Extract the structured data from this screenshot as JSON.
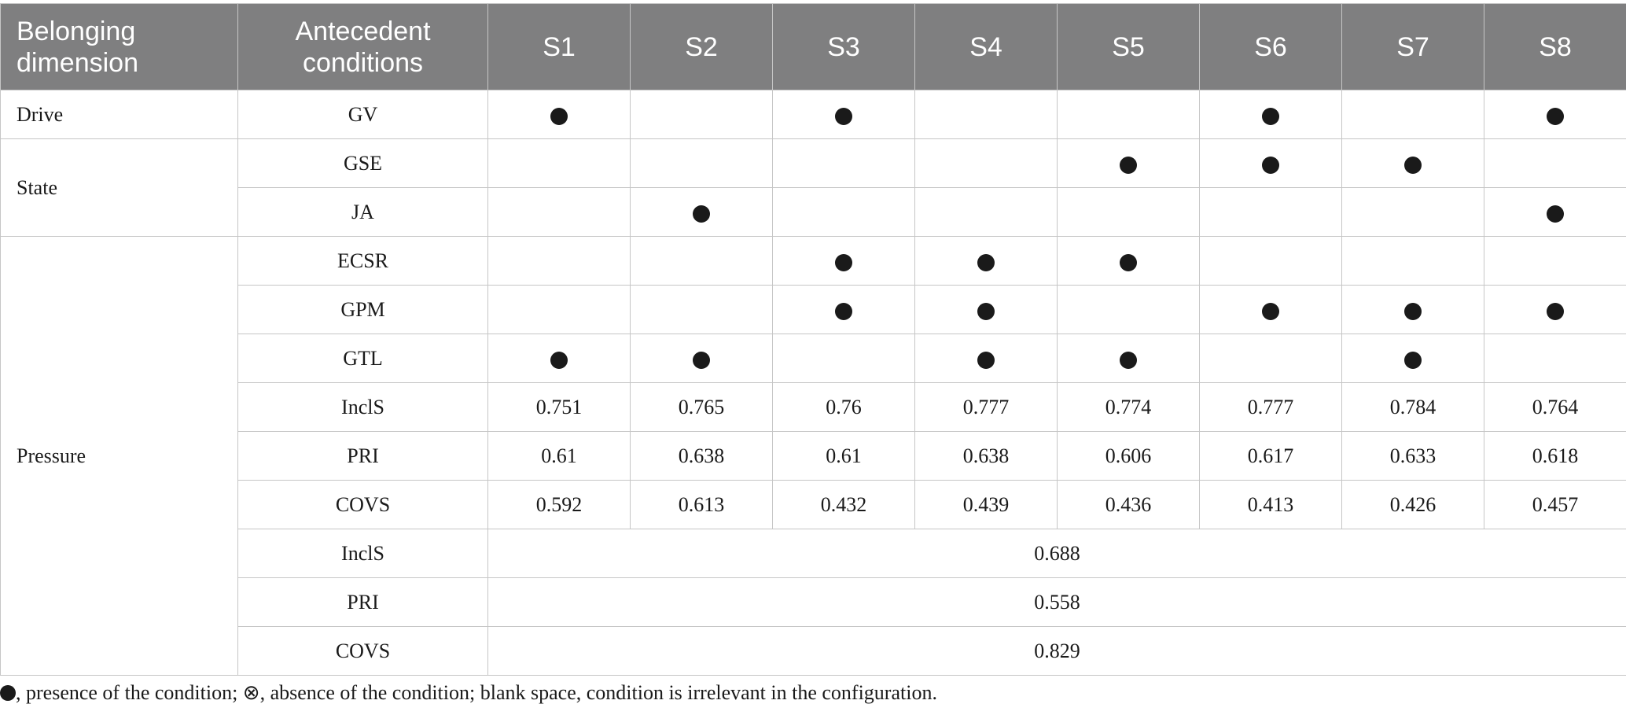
{
  "header": {
    "dimension": "Belonging dimension",
    "conditions": "Antecedent conditions",
    "solutions": [
      "S1",
      "S2",
      "S3",
      "S4",
      "S5",
      "S6",
      "S7",
      "S8"
    ]
  },
  "dimensions": [
    "Drive",
    "State",
    "Pressure"
  ],
  "conditions": [
    {
      "name": "GV",
      "presence": [
        true,
        false,
        true,
        false,
        false,
        true,
        false,
        true
      ]
    },
    {
      "name": "GSE",
      "presence": [
        false,
        false,
        false,
        false,
        true,
        true,
        true,
        false
      ]
    },
    {
      "name": "JA",
      "presence": [
        false,
        true,
        false,
        false,
        false,
        false,
        false,
        true
      ]
    },
    {
      "name": "ECSR",
      "presence": [
        false,
        false,
        true,
        true,
        true,
        false,
        false,
        false
      ]
    },
    {
      "name": "GPM",
      "presence": [
        false,
        false,
        true,
        true,
        false,
        true,
        true,
        true
      ]
    },
    {
      "name": "GTL",
      "presence": [
        true,
        true,
        false,
        true,
        true,
        false,
        true,
        false
      ]
    }
  ],
  "metrics": [
    {
      "name": "InclS",
      "values": [
        "0.751",
        "0.765",
        "0.76",
        "0.777",
        "0.774",
        "0.777",
        "0.784",
        "0.764"
      ]
    },
    {
      "name": "PRI",
      "values": [
        "0.61",
        "0.638",
        "0.61",
        "0.638",
        "0.606",
        "0.617",
        "0.633",
        "0.618"
      ]
    },
    {
      "name": "COVS",
      "values": [
        "0.592",
        "0.613",
        "0.432",
        "0.439",
        "0.436",
        "0.413",
        "0.426",
        "0.457"
      ]
    }
  ],
  "overall": [
    {
      "name": "InclS",
      "value": "0.688"
    },
    {
      "name": "PRI",
      "value": "0.558"
    },
    {
      "name": "COVS",
      "value": "0.829"
    }
  ],
  "footnote": {
    "presence": ", presence of the condition; ",
    "absence_symbol": "⊗",
    "absence": ", absence of the condition; blank space, condition is irrelevant in the configuration."
  }
}
